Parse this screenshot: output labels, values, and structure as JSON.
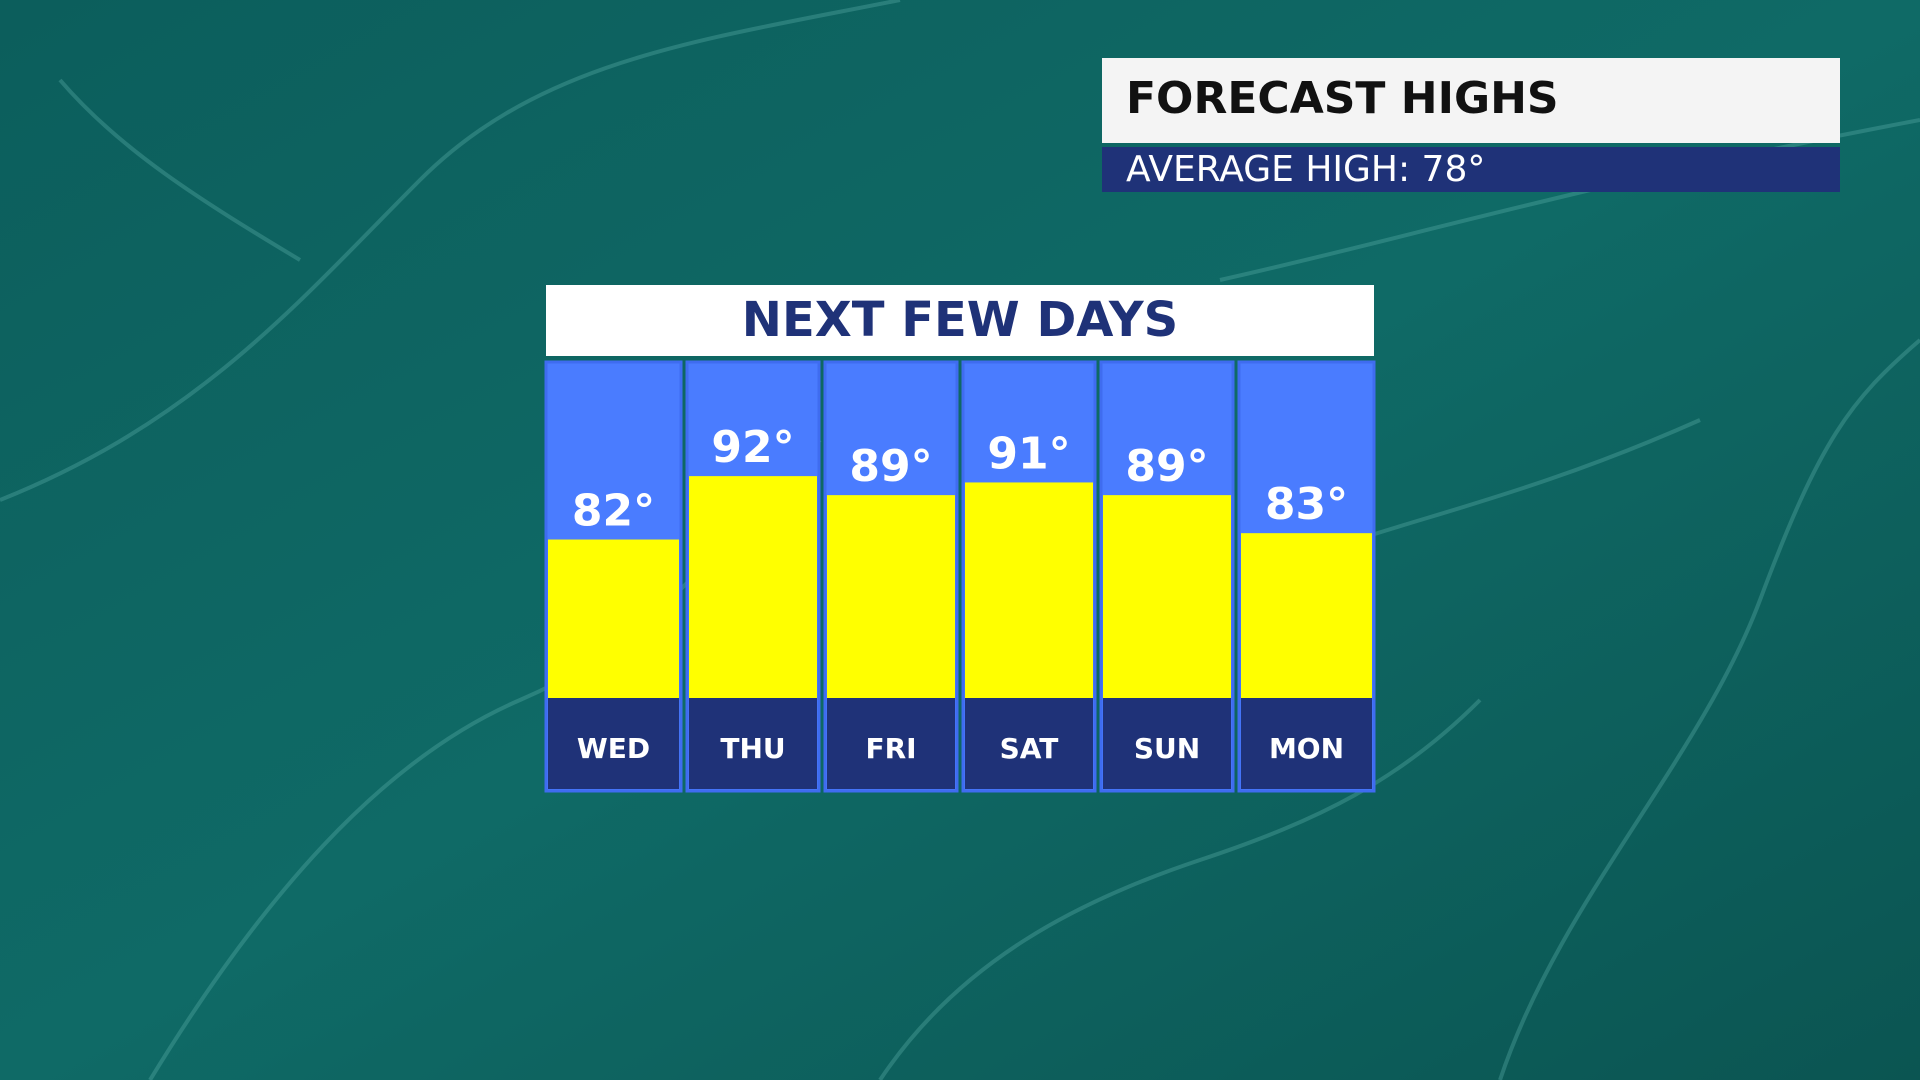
{
  "header": {
    "title": "FORECAST HIGHS",
    "subtitle": "AVERAGE HIGH: 78°"
  },
  "chart_data": {
    "type": "bar",
    "title": "NEXT FEW DAYS",
    "categories": [
      "WED",
      "THU",
      "FRI",
      "SAT",
      "SUN",
      "MON"
    ],
    "values": [
      82,
      92,
      89,
      91,
      89,
      83
    ],
    "value_labels": [
      "82°",
      "92°",
      "89°",
      "91°",
      "89°",
      "83°"
    ],
    "color": "#ffff00",
    "ylim": [
      57,
      110
    ]
  }
}
